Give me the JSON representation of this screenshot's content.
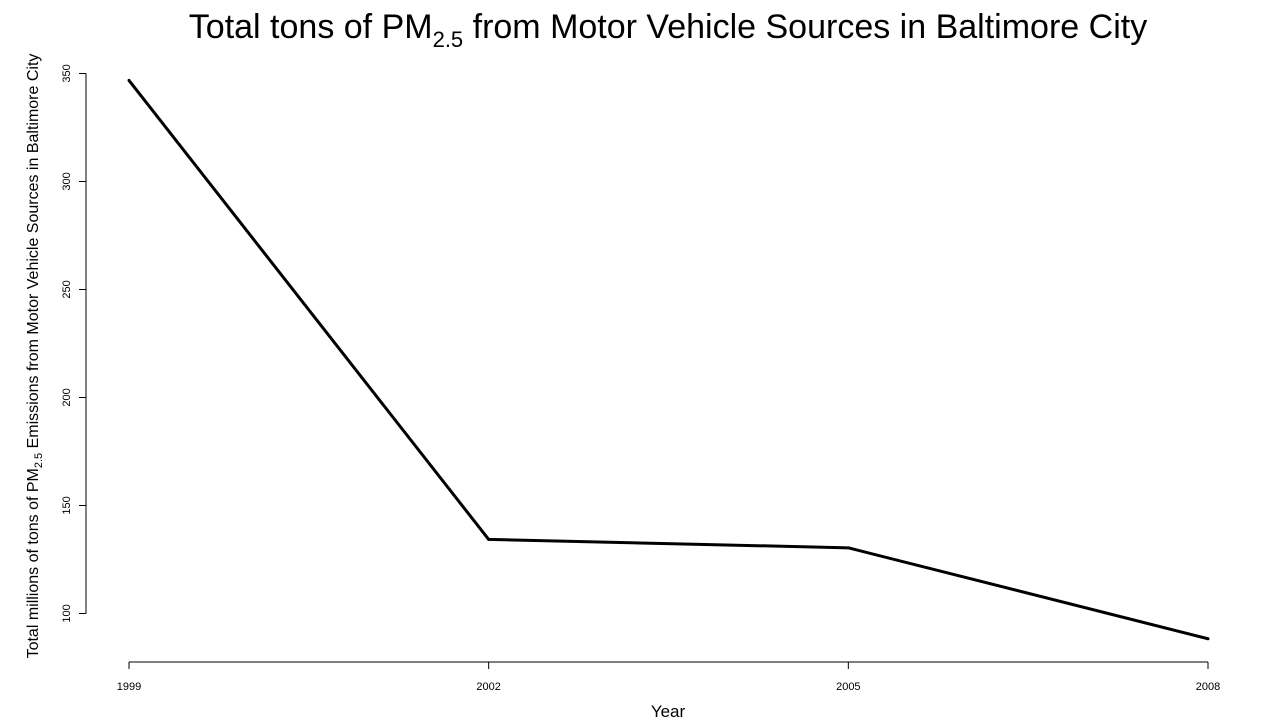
{
  "chart_data": {
    "type": "line",
    "title": {
      "prefix": "Total tons of PM",
      "subscript": "2.5",
      "suffix": " from Motor Vehicle Sources in Baltimore City"
    },
    "xlabel": "Year",
    "ylabel": {
      "prefix": "Total millions of tons of PM",
      "subscript": "2.5",
      "suffix": " Emissions from Motor Vehicle Sources in Baltimore City"
    },
    "x": [
      1999,
      2002,
      2005,
      2008
    ],
    "x_tick_labels": [
      "1999",
      "2002",
      "2005",
      "2008"
    ],
    "y_ticks": [
      100,
      150,
      200,
      250,
      300,
      350
    ],
    "y_tick_labels": [
      "100",
      "150",
      "200",
      "250",
      "300",
      "350"
    ],
    "ylim": [
      78.7,
      350
    ],
    "series": [
      {
        "values": [
          346.8,
          134.3,
          130.4,
          88.3
        ],
        "color": "#000000"
      }
    ],
    "grid": false,
    "legend": "none"
  }
}
